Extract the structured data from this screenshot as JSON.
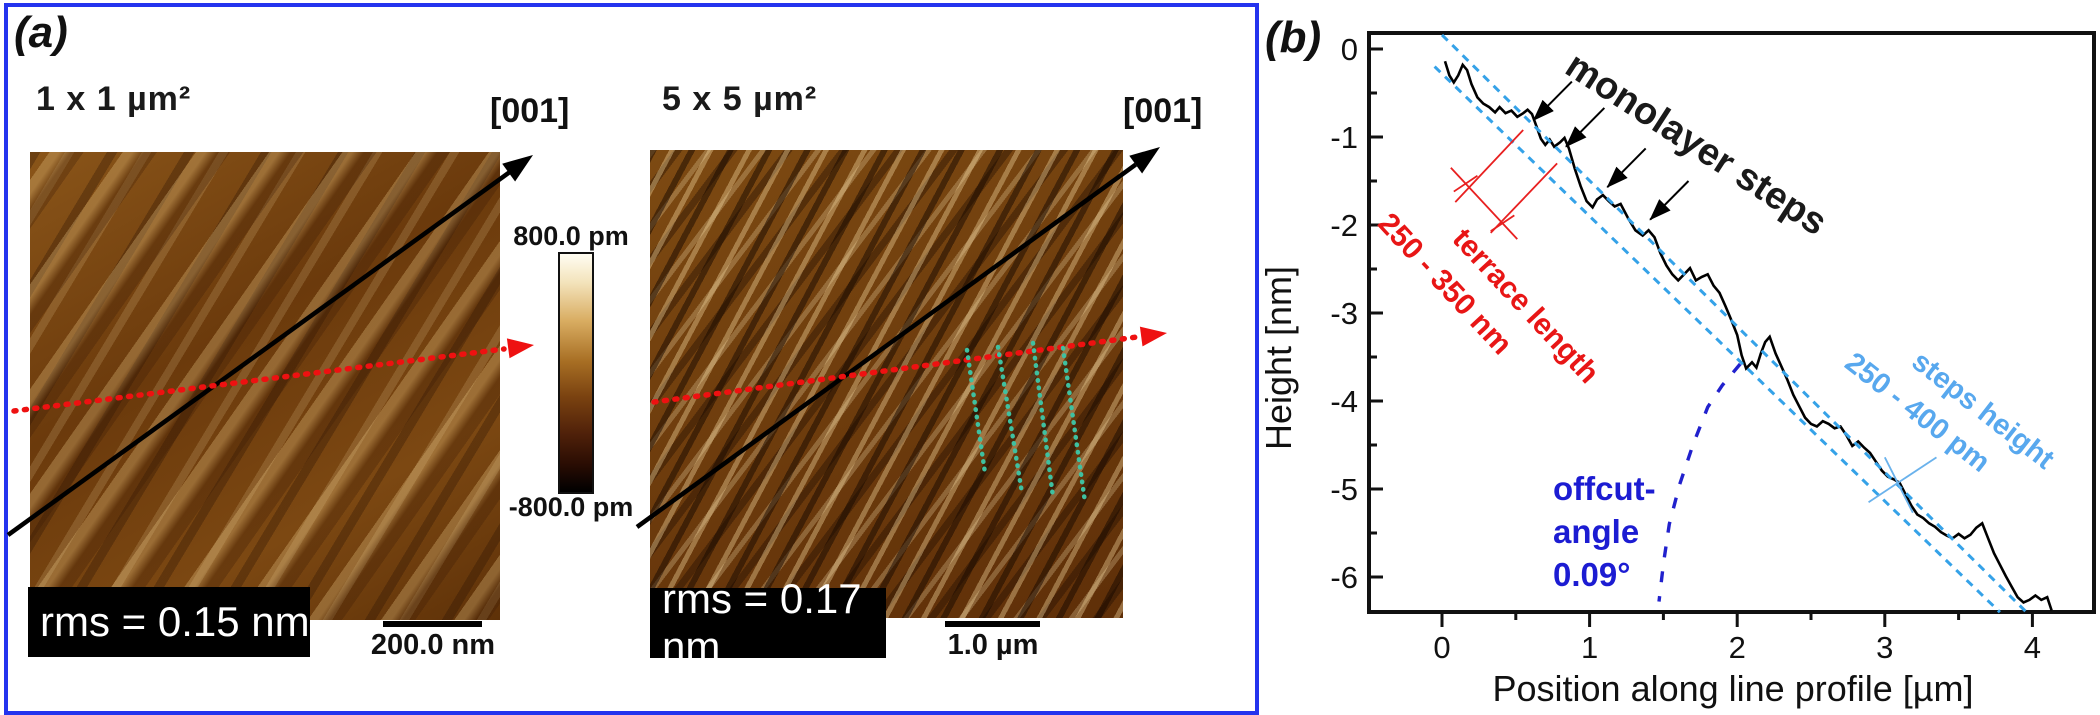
{
  "panel_a": {
    "label": "(a)",
    "img1": {
      "title": "1 x 1 µm²",
      "direction": "[001]",
      "rms": "rms = 0.15 nm",
      "scalebar": "200.0 nm"
    },
    "img2": {
      "title": "5 x 5 µm²",
      "direction": "[001]",
      "rms": "rms = 0.17 nm",
      "scalebar": "1.0 µm"
    },
    "colorbar": {
      "top": "800.0 pm",
      "bottom": "-800.0 pm"
    }
  },
  "panel_b": {
    "label": "(b)"
  },
  "colors": {
    "panel_border": "#2433ee",
    "profile": "#000000",
    "envelope": "#35a2e8",
    "offcut": "#2121cd",
    "red_annotation": "#e81616",
    "teal_marks": "#3fc0a0"
  },
  "chart_data": {
    "type": "line",
    "title": "",
    "xlabel": "Position along line profile [µm]",
    "ylabel": "Height [nm]",
    "xlim": [
      -0.49,
      4.43
    ],
    "ylim": [
      -6.4,
      0.18
    ],
    "grid": false,
    "legend": "none",
    "xticks": [
      0,
      1,
      2,
      3,
      4
    ],
    "yticks": [
      0,
      -1,
      -2,
      -3,
      -4,
      -5,
      -6
    ],
    "xminor": [
      0.5,
      1.5,
      2.5,
      3.5
    ],
    "yminor": [
      -0.5,
      -1.5,
      -2.5,
      -3.5,
      -4.5,
      -5.5
    ],
    "series": [
      {
        "name": "height-profile",
        "color": "#000000",
        "style": "solid",
        "width": 2.6,
        "points": [
          [
            0.02,
            -0.14
          ],
          [
            0.05,
            -0.3
          ],
          [
            0.08,
            -0.38
          ],
          [
            0.11,
            -0.3
          ],
          [
            0.14,
            -0.18
          ],
          [
            0.17,
            -0.24
          ],
          [
            0.2,
            -0.4
          ],
          [
            0.24,
            -0.55
          ],
          [
            0.28,
            -0.62
          ],
          [
            0.32,
            -0.66
          ],
          [
            0.36,
            -0.72
          ],
          [
            0.39,
            -0.66
          ],
          [
            0.43,
            -0.73
          ],
          [
            0.47,
            -0.7
          ],
          [
            0.51,
            -0.77
          ],
          [
            0.55,
            -0.73
          ],
          [
            0.58,
            -0.69
          ],
          [
            0.61,
            -0.74
          ],
          [
            0.64,
            -0.88
          ],
          [
            0.67,
            -1.02
          ],
          [
            0.7,
            -1.09
          ],
          [
            0.73,
            -1.03
          ],
          [
            0.76,
            -1.11
          ],
          [
            0.8,
            -1.06
          ],
          [
            0.83,
            -1.01
          ],
          [
            0.86,
            -1.13
          ],
          [
            0.9,
            -1.36
          ],
          [
            0.94,
            -1.56
          ],
          [
            0.98,
            -1.73
          ],
          [
            1.02,
            -1.8
          ],
          [
            1.05,
            -1.71
          ],
          [
            1.09,
            -1.66
          ],
          [
            1.13,
            -1.73
          ],
          [
            1.17,
            -1.79
          ],
          [
            1.21,
            -1.76
          ],
          [
            1.26,
            -1.92
          ],
          [
            1.31,
            -2.06
          ],
          [
            1.36,
            -2.12
          ],
          [
            1.4,
            -2.06
          ],
          [
            1.44,
            -2.14
          ],
          [
            1.48,
            -2.32
          ],
          [
            1.52,
            -2.46
          ],
          [
            1.56,
            -2.56
          ],
          [
            1.6,
            -2.63
          ],
          [
            1.64,
            -2.56
          ],
          [
            1.68,
            -2.49
          ],
          [
            1.72,
            -2.63
          ],
          [
            1.76,
            -2.59
          ],
          [
            1.8,
            -2.56
          ],
          [
            1.84,
            -2.69
          ],
          [
            1.88,
            -2.77
          ],
          [
            1.92,
            -2.92
          ],
          [
            1.96,
            -3.08
          ],
          [
            2.0,
            -3.25
          ],
          [
            2.03,
            -3.48
          ],
          [
            2.06,
            -3.63
          ],
          [
            2.1,
            -3.56
          ],
          [
            2.13,
            -3.62
          ],
          [
            2.16,
            -3.46
          ],
          [
            2.19,
            -3.33
          ],
          [
            2.22,
            -3.27
          ],
          [
            2.26,
            -3.46
          ],
          [
            2.3,
            -3.61
          ],
          [
            2.34,
            -3.76
          ],
          [
            2.38,
            -3.93
          ],
          [
            2.42,
            -4.06
          ],
          [
            2.46,
            -4.19
          ],
          [
            2.5,
            -4.26
          ],
          [
            2.54,
            -4.29
          ],
          [
            2.58,
            -4.23
          ],
          [
            2.62,
            -4.26
          ],
          [
            2.66,
            -4.31
          ],
          [
            2.7,
            -4.29
          ],
          [
            2.74,
            -4.39
          ],
          [
            2.78,
            -4.51
          ],
          [
            2.82,
            -4.46
          ],
          [
            2.86,
            -4.53
          ],
          [
            2.9,
            -4.59
          ],
          [
            2.94,
            -4.69
          ],
          [
            2.98,
            -4.79
          ],
          [
            3.02,
            -4.86
          ],
          [
            3.06,
            -4.89
          ],
          [
            3.1,
            -4.93
          ],
          [
            3.14,
            -5.06
          ],
          [
            3.18,
            -5.19
          ],
          [
            3.22,
            -5.29
          ],
          [
            3.26,
            -5.33
          ],
          [
            3.3,
            -5.39
          ],
          [
            3.34,
            -5.43
          ],
          [
            3.38,
            -5.49
          ],
          [
            3.42,
            -5.53
          ],
          [
            3.46,
            -5.56
          ],
          [
            3.5,
            -5.51
          ],
          [
            3.54,
            -5.56
          ],
          [
            3.58,
            -5.52
          ],
          [
            3.62,
            -5.44
          ],
          [
            3.66,
            -5.39
          ],
          [
            3.7,
            -5.56
          ],
          [
            3.74,
            -5.73
          ],
          [
            3.78,
            -5.86
          ],
          [
            3.82,
            -5.99
          ],
          [
            3.86,
            -6.11
          ],
          [
            3.9,
            -6.23
          ],
          [
            3.94,
            -6.29
          ],
          [
            3.98,
            -6.26
          ],
          [
            4.02,
            -6.21
          ],
          [
            4.06,
            -6.26
          ],
          [
            4.1,
            -6.23
          ],
          [
            4.13,
            -6.38
          ]
        ]
      },
      {
        "name": "envelope-upper",
        "color": "#35a2e8",
        "style": "dashed",
        "dash": "8 6.5",
        "width": 3,
        "points": [
          [
            0.0,
            0.16
          ],
          [
            3.96,
            -6.4
          ]
        ]
      },
      {
        "name": "envelope-lower",
        "color": "#35a2e8",
        "style": "dashed",
        "dash": "8 6.5",
        "width": 3,
        "points": [
          [
            -0.05,
            -0.2
          ],
          [
            3.78,
            -6.4
          ]
        ]
      },
      {
        "name": "offcut-reference",
        "color": "#2121cd",
        "style": "dashed",
        "dash": "11 14",
        "width": 3.4,
        "points": [
          [
            2.02,
            -3.58
          ],
          [
            1.9,
            -3.82
          ],
          [
            1.8,
            -4.07
          ],
          [
            1.7,
            -4.5
          ],
          [
            1.61,
            -4.95
          ],
          [
            1.54,
            -5.4
          ],
          [
            1.5,
            -5.85
          ],
          [
            1.47,
            -6.28
          ]
        ]
      }
    ],
    "annotations": {
      "monolayer_arrows": [
        {
          "from": [
            0.88,
            -0.37
          ],
          "to": [
            0.62,
            -0.81
          ]
        },
        {
          "from": [
            1.1,
            -0.67
          ],
          "to": [
            0.84,
            -1.11
          ]
        },
        {
          "from": [
            1.38,
            -1.13
          ],
          "to": [
            1.12,
            -1.57
          ]
        },
        {
          "from": [
            1.67,
            -1.5
          ],
          "to": [
            1.41,
            -1.94
          ]
        }
      ],
      "terrace_lines": [
        [
          [
            0.55,
            -0.92
          ],
          [
            0.09,
            -1.74
          ]
        ],
        [
          [
            0.78,
            -1.3
          ],
          [
            0.33,
            -2.09
          ]
        ],
        [
          [
            0.06,
            -1.35
          ],
          [
            0.51,
            -2.16
          ]
        ],
        [
          [
            0.08,
            -1.62
          ],
          [
            0.24,
            -1.44
          ]
        ],
        [
          [
            0.33,
            -2.07
          ],
          [
            0.49,
            -1.89
          ]
        ]
      ],
      "step_height_lines": [
        [
          [
            2.89,
            -5.15
          ],
          [
            3.35,
            -4.64
          ]
        ],
        [
          [
            3.0,
            -4.64
          ],
          [
            3.19,
            -5.27
          ]
        ]
      ],
      "labels": {
        "monolayer": "monolayer steps",
        "terrace1": "terrace length",
        "terrace2": "250 - 350 nm",
        "steps1": "steps height",
        "steps2": "250 - 400 pm",
        "offcut1": "offcut-",
        "offcut2": "angle",
        "offcut3": "0.09°"
      }
    }
  }
}
